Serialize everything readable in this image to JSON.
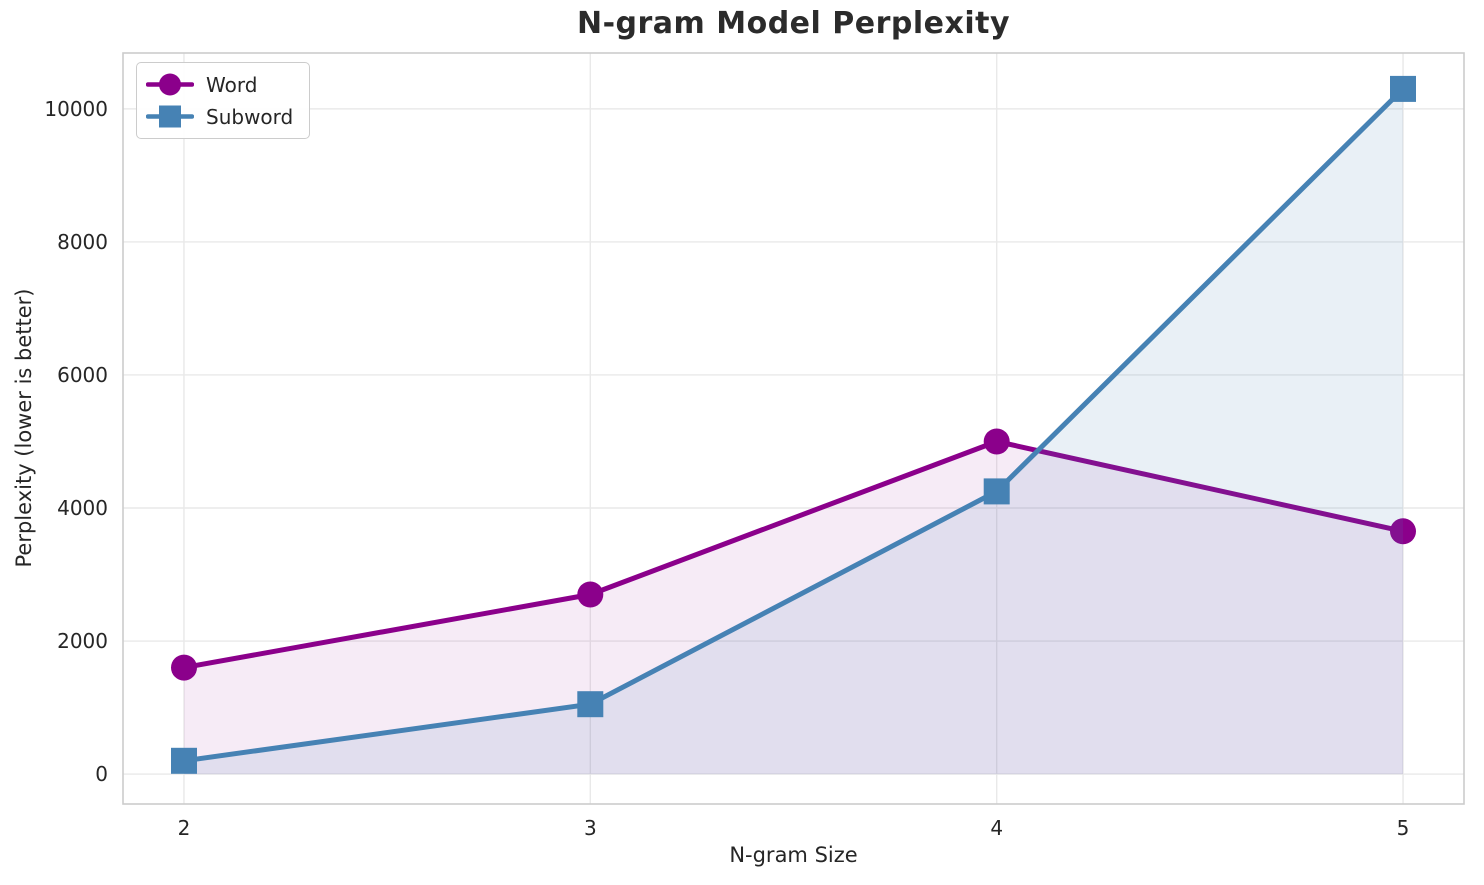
{
  "figure": {
    "background_color": "#ffffff",
    "text_color": "#262626",
    "title_color": "#2b2b2b"
  },
  "chart_data": {
    "type": "line",
    "title": "N-gram Model Perplexity",
    "xlabel": "N-gram Size",
    "ylabel": "Perplexity (lower is better)",
    "x": [
      2,
      3,
      4,
      5
    ],
    "series": [
      {
        "name": "Word",
        "values": [
          1600,
          2700,
          5000,
          3650
        ],
        "color": "#8B008B",
        "marker": "circle",
        "fill_opacity": 0.08
      },
      {
        "name": "Subword",
        "values": [
          200,
          1050,
          4250,
          10300
        ],
        "color": "#4682B4",
        "marker": "square",
        "fill_opacity": 0.12
      }
    ],
    "xticks": [
      2,
      3,
      4,
      5
    ],
    "yticks": [
      0,
      2000,
      4000,
      6000,
      8000,
      10000
    ],
    "xlim": [
      1.85,
      5.15
    ],
    "ylim": [
      -450,
      10840
    ],
    "grid": true,
    "grid_color": "#e9e9e9",
    "spine_color": "#cccccc",
    "legend_position": "upper left",
    "area_fill_to": 0,
    "line_width": 5,
    "marker_size": 26
  }
}
